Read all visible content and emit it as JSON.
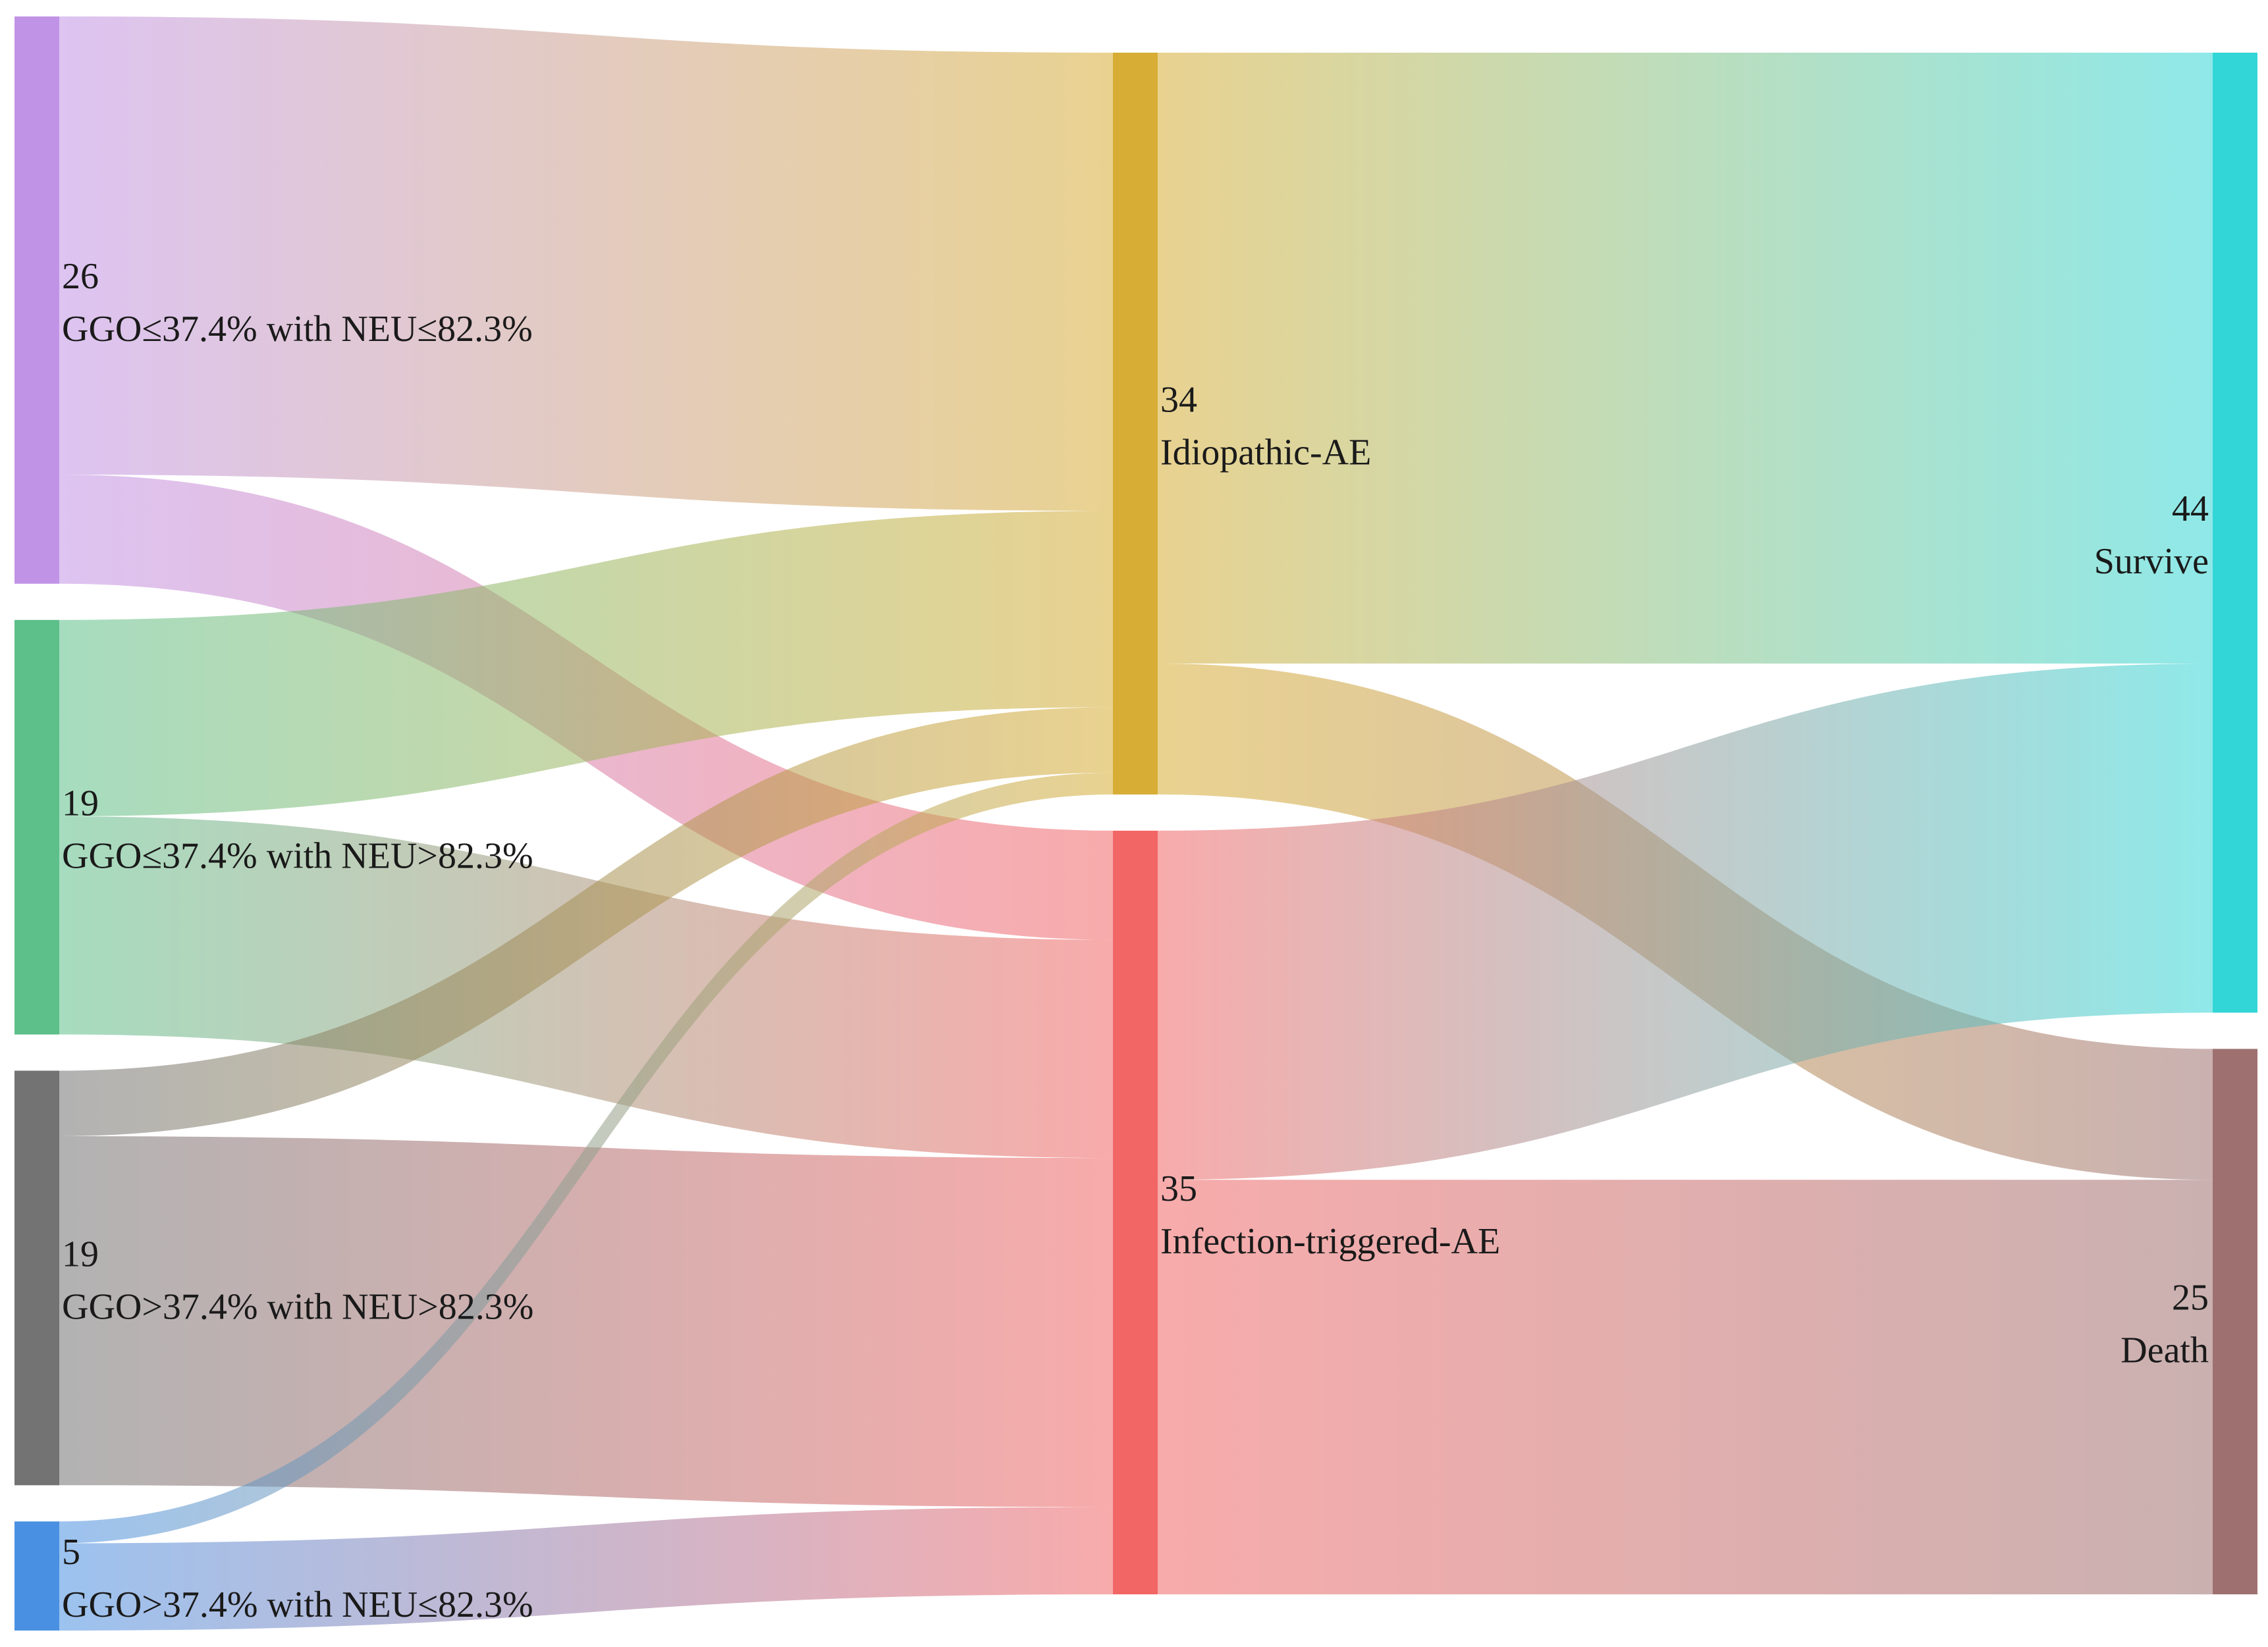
{
  "chart_data": {
    "type": "sankey",
    "nodes": [
      {
        "id": "n1",
        "name": "GGO≤37.4% with NEU≤82.3%",
        "value": 26,
        "value_label": "26",
        "column": 0,
        "color": "#c193e6"
      },
      {
        "id": "n2",
        "name": "GGO≤37.4% with NEU>82.3%",
        "value": 19,
        "value_label": "19",
        "column": 0,
        "color": "#5dbf8a"
      },
      {
        "id": "n3",
        "name": "GGO>37.4% with NEU>82.3%",
        "value": 19,
        "value_label": "19",
        "column": 0,
        "color": "#737373"
      },
      {
        "id": "n4",
        "name": "GGO>37.4% with NEU≤82.3%",
        "value": 5,
        "value_label": "5",
        "column": 0,
        "color": "#4a90e2"
      },
      {
        "id": "n5",
        "name": "Idiopathic-AE",
        "value": 34,
        "value_label": "34",
        "column": 1,
        "color": "#d7ad35"
      },
      {
        "id": "n6",
        "name": "Infection-triggered-AE",
        "value": 35,
        "value_label": "35",
        "column": 1,
        "color": "#f26666"
      },
      {
        "id": "n7",
        "name": "Survive",
        "value": 44,
        "value_label": "44",
        "column": 2,
        "color": "#33d6d6"
      },
      {
        "id": "n8",
        "name": "Death",
        "value": 25,
        "value_label": "25",
        "column": 2,
        "color": "#9e7170"
      }
    ],
    "links": [
      {
        "source": "n1",
        "target": "n5",
        "value": 21
      },
      {
        "source": "n1",
        "target": "n6",
        "value": 5
      },
      {
        "source": "n2",
        "target": "n5",
        "value": 9
      },
      {
        "source": "n2",
        "target": "n6",
        "value": 10
      },
      {
        "source": "n3",
        "target": "n5",
        "value": 3
      },
      {
        "source": "n3",
        "target": "n6",
        "value": 16
      },
      {
        "source": "n4",
        "target": "n5",
        "value": 1
      },
      {
        "source": "n4",
        "target": "n6",
        "value": 4
      },
      {
        "source": "n5",
        "target": "n7",
        "value": 28
      },
      {
        "source": "n5",
        "target": "n8",
        "value": 6
      },
      {
        "source": "n6",
        "target": "n7",
        "value": 16
      },
      {
        "source": "n6",
        "target": "n8",
        "value": 19
      }
    ]
  }
}
